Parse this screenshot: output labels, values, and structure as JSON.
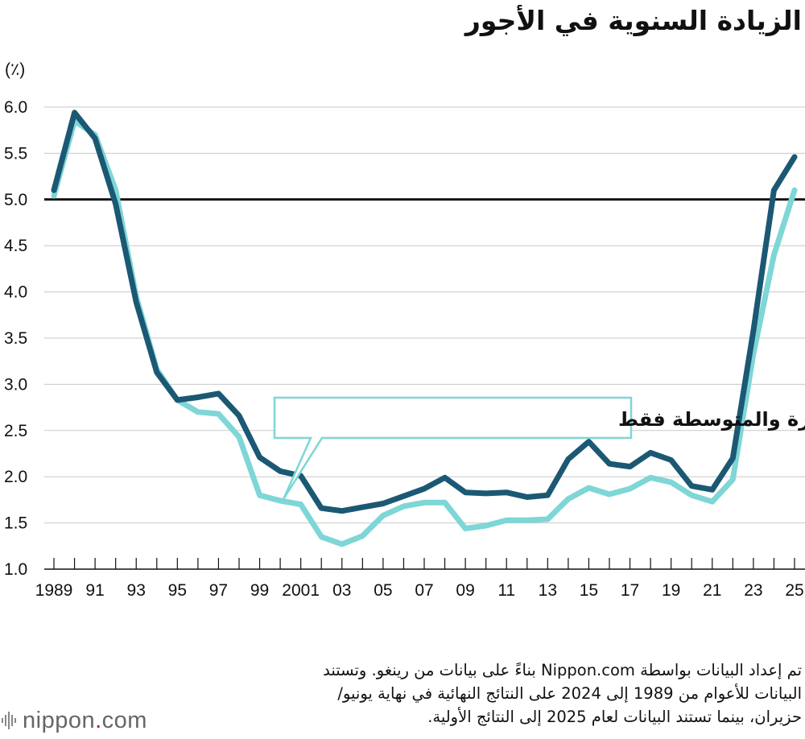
{
  "title": "الزيادة السنوية في الأجور",
  "chart_data": {
    "type": "line",
    "unit_label": "(٪)",
    "x": [
      1989,
      1990,
      1991,
      1992,
      1993,
      1994,
      1995,
      1996,
      1997,
      1998,
      1999,
      2000,
      2001,
      2002,
      2003,
      2004,
      2005,
      2006,
      2007,
      2008,
      2009,
      2010,
      2011,
      2012,
      2013,
      2014,
      2015,
      2016,
      2017,
      2018,
      2019,
      2020,
      2021,
      2022,
      2023,
      2024,
      2025
    ],
    "x_tick_labels": [
      "1989",
      "91",
      "93",
      "95",
      "97",
      "99",
      "2001",
      "03",
      "05",
      "07",
      "09",
      "11",
      "13",
      "15",
      "17",
      "19",
      "21",
      "23",
      "25"
    ],
    "x_tick_years": [
      1989,
      1991,
      1993,
      1995,
      1997,
      1999,
      2001,
      2003,
      2005,
      2007,
      2009,
      2011,
      2013,
      2015,
      2017,
      2019,
      2021,
      2023,
      2025
    ],
    "ylim": [
      1.0,
      6.0
    ],
    "y_ticks": [
      "1.0",
      "1.5",
      "2.0",
      "2.5",
      "3.0",
      "3.5",
      "4.0",
      "4.5",
      "5.0",
      "5.5",
      "6.0"
    ],
    "reference_line": 5.0,
    "grid": "horizontal",
    "series": [
      {
        "name": "all_companies",
        "color": "#1b5873",
        "values": [
          5.1,
          5.94,
          5.66,
          4.95,
          3.89,
          3.13,
          2.83,
          2.86,
          2.9,
          2.66,
          2.21,
          2.06,
          2.01,
          1.66,
          1.63,
          1.67,
          1.71,
          1.79,
          1.87,
          1.99,
          1.83,
          1.82,
          1.83,
          1.78,
          1.8,
          2.19,
          2.38,
          2.14,
          2.11,
          2.26,
          2.18,
          1.9,
          1.86,
          2.2,
          3.58,
          5.1,
          5.46
        ]
      },
      {
        "name": "الشركات الصغيرة والمتوسطة فقط",
        "color": "#7ed6d6",
        "values": [
          5.04,
          5.85,
          5.7,
          5.1,
          3.95,
          3.16,
          2.83,
          2.7,
          2.68,
          2.43,
          1.8,
          1.74,
          1.7,
          1.35,
          1.27,
          1.36,
          1.58,
          1.68,
          1.72,
          1.72,
          1.44,
          1.47,
          1.53,
          1.53,
          1.54,
          1.76,
          1.88,
          1.81,
          1.87,
          1.99,
          1.94,
          1.8,
          1.73,
          1.97,
          3.33,
          4.4,
          5.1
        ]
      }
    ],
    "annotation": "الشركات الصغيرة والمتوسطة فقط"
  },
  "source": {
    "line1": "تم إعداد البيانات بواسطة Nippon.com بناءً على بيانات من رينغو. وتستند",
    "line2": "البيانات للأعوام من 1989 إلى 2024 على النتائج النهائية في نهاية يونيو/",
    "line3": "حزيران، بينما تستند البيانات لعام 2025 إلى النتائج الأولية."
  },
  "logo": {
    "name": "nippon",
    "dot": ".",
    "domain": "com"
  }
}
